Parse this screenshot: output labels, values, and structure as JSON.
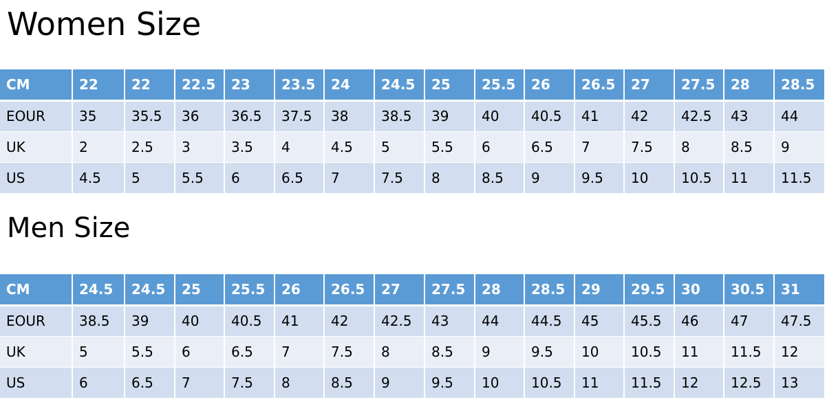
{
  "women": {
    "title": "Women Size",
    "rows": [
      [
        "CM",
        "22",
        "22",
        "22.5",
        "23",
        "23.5",
        "24",
        "24.5",
        "25",
        "25.5",
        "26",
        "26.5",
        "27",
        "27.5",
        "28",
        "28.5"
      ],
      [
        "EOUR",
        "35",
        "35.5",
        "36",
        "36.5",
        "37.5",
        "38",
        "38.5",
        "39",
        "40",
        "40.5",
        "41",
        "42",
        "42.5",
        "43",
        "44"
      ],
      [
        "UK",
        "2",
        "2.5",
        "3",
        "3.5",
        "4",
        "4.5",
        "5",
        "5.5",
        "6",
        "6.5",
        "7",
        "7.5",
        "8",
        "8.5",
        "9"
      ],
      [
        "US",
        "4.5",
        "5",
        "5.5",
        "6",
        "6.5",
        "7",
        "7.5",
        "8",
        "8.5",
        "9",
        "9.5",
        "10",
        "10.5",
        "11",
        "11.5"
      ]
    ]
  },
  "men": {
    "title": "Men Size",
    "rows": [
      [
        "CM",
        "24.5",
        "24.5",
        "25",
        "25.5",
        "26",
        "26.5",
        "27",
        "27.5",
        "28",
        "28.5",
        "29",
        "29.5",
        "30",
        "30.5",
        "31"
      ],
      [
        "EOUR",
        "38.5",
        "39",
        "40",
        "40.5",
        "41",
        "42",
        "42.5",
        "43",
        "44",
        "44.5",
        "45",
        "45.5",
        "46",
        "47",
        "47.5"
      ],
      [
        "UK",
        "5",
        "5.5",
        "6",
        "6.5",
        "7",
        "7.5",
        "8",
        "8.5",
        "9",
        "9.5",
        "10",
        "10.5",
        "11",
        "11.5",
        "12"
      ],
      [
        "US",
        "6",
        "6.5",
        "7",
        "7.5",
        "8",
        "8.5",
        "9",
        "9.5",
        "10",
        "10.5",
        "11",
        "11.5",
        "12",
        "12.5",
        "13"
      ]
    ]
  },
  "colors": {
    "header": "#5B9BD5",
    "row_dark": "#D2DEEF",
    "row_light": "#EAEFF7"
  }
}
